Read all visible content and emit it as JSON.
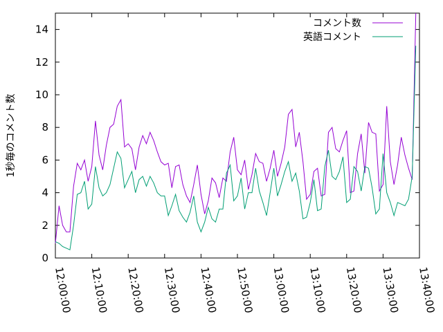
{
  "chart_data": {
    "type": "line",
    "title": "",
    "xlabel": "",
    "ylabel": "1秒毎のコメント数",
    "ylim": [
      0,
      15
    ],
    "xlim": [
      "12:00:00",
      "13:40:00"
    ],
    "grid": false,
    "legend": "top-right",
    "y_ticks": [
      "0",
      "2",
      "4",
      "6",
      "8",
      "10",
      "12",
      "14"
    ],
    "x_ticks": [
      "12:00:00",
      "12:10:00",
      "12:20:00",
      "12:30:00",
      "12:40:00",
      "12:50:00",
      "13:00:00",
      "13:10:00",
      "13:20:00",
      "13:30:00",
      "13:40:00"
    ],
    "x_minutes": [
      0,
      1,
      2,
      3,
      4,
      5,
      6,
      7,
      8,
      9,
      10,
      11,
      12,
      13,
      14,
      15,
      16,
      17,
      18,
      19,
      20,
      21,
      22,
      23,
      24,
      25,
      26,
      27,
      28,
      29,
      30,
      31,
      32,
      33,
      34,
      35,
      36,
      37,
      38,
      39,
      40,
      41,
      42,
      43,
      44,
      45,
      46,
      47,
      48,
      49,
      50,
      51,
      52,
      53,
      54,
      55,
      56,
      57,
      58,
      59,
      60,
      61,
      62,
      63,
      64,
      65,
      66,
      67,
      68,
      69,
      70,
      71,
      72,
      73,
      74,
      75,
      76,
      77,
      78,
      79,
      80,
      81,
      82,
      83,
      84,
      85,
      86,
      87,
      88,
      89,
      90,
      91,
      92,
      93,
      94,
      95,
      96,
      97,
      98,
      99
    ],
    "series": [
      {
        "name": "コメント数",
        "color": "#9400d3",
        "values": [
          0.9,
          3.2,
          2.0,
          1.6,
          1.6,
          4.4,
          5.8,
          5.4,
          6.0,
          4.7,
          5.6,
          8.4,
          6.3,
          5.4,
          6.9,
          8.0,
          8.2,
          9.3,
          9.7,
          6.8,
          7.0,
          6.7,
          5.4,
          6.8,
          7.5,
          7.0,
          7.7,
          7.2,
          6.5,
          5.9,
          5.7,
          5.8,
          4.3,
          5.6,
          5.7,
          4.5,
          3.8,
          3.4,
          4.5,
          5.7,
          3.9,
          2.7,
          3.5,
          4.9,
          4.6,
          3.7,
          4.9,
          4.7,
          6.5,
          7.4,
          5.4,
          5.1,
          6.0,
          4.2,
          5.1,
          6.4,
          5.9,
          5.8,
          4.7,
          5.5,
          6.6,
          5.0,
          5.8,
          6.8,
          8.8,
          9.1,
          6.8,
          7.7,
          5.9,
          3.6,
          3.9,
          5.3,
          5.5,
          3.8,
          3.9,
          7.7,
          8.0,
          6.7,
          6.5,
          7.2,
          7.8,
          4.0,
          4.1,
          6.4,
          7.6,
          5.2,
          8.3,
          7.7,
          7.6,
          4.1,
          4.5,
          9.3,
          5.9,
          4.5,
          5.7,
          7.4,
          6.3,
          5.5,
          4.8,
          15.0
        ]
      },
      {
        "name": "英語コメント",
        "color": "#009e73",
        "values": [
          1.0,
          0.9,
          0.7,
          0.6,
          0.5,
          2.0,
          3.9,
          4.0,
          4.7,
          3.0,
          3.3,
          5.6,
          4.3,
          3.8,
          4.0,
          4.5,
          5.5,
          6.5,
          6.1,
          4.3,
          4.8,
          5.3,
          4.0,
          4.8,
          5.0,
          4.4,
          5.0,
          4.6,
          4.0,
          3.8,
          3.8,
          2.6,
          3.2,
          3.9,
          2.9,
          2.5,
          2.2,
          2.8,
          3.8,
          2.2,
          1.6,
          2.2,
          3.1,
          2.4,
          2.2,
          3.0,
          3.0,
          5.2,
          5.7,
          3.5,
          3.8,
          4.9,
          3.0,
          4.0,
          4.0,
          5.5,
          4.1,
          3.4,
          2.6,
          4.0,
          5.5,
          3.8,
          4.5,
          5.3,
          5.9,
          4.7,
          5.2,
          4.1,
          2.4,
          2.5,
          3.4,
          4.8,
          2.9,
          3.0,
          5.6,
          6.6,
          5.0,
          4.8,
          5.3,
          6.2,
          3.4,
          3.6,
          5.6,
          5.3,
          4.1,
          5.6,
          5.5,
          4.3,
          2.7,
          3.0,
          6.4,
          4.0,
          3.4,
          2.6,
          3.4,
          3.3,
          3.2,
          3.6,
          5.0,
          13.0
        ]
      }
    ]
  }
}
